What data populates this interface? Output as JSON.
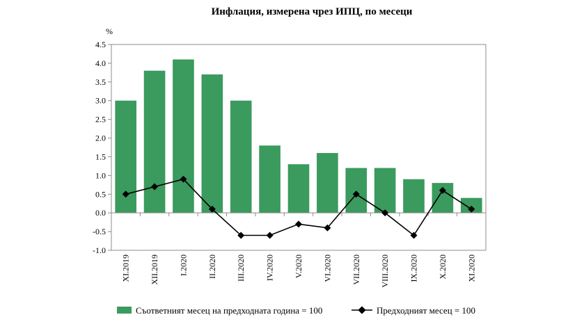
{
  "chart_data": {
    "type": "bar",
    "title": "Инфлация, измерена чрез ИПЦ, по месеци",
    "unit_label": "%",
    "categories": [
      "XI.2019",
      "XII.2019",
      "I.2020",
      "II.2020",
      "III.2020",
      "IV.2020",
      "V.2020",
      "VI.2020",
      "VII.2020",
      "VIII.2020",
      "IX.2020",
      "X.2020",
      "XI.2020"
    ],
    "series": [
      {
        "name": "Съответният месец на предходната година = 100",
        "kind": "bar",
        "color": "#3b9a5e",
        "values": [
          3.0,
          3.8,
          4.1,
          3.7,
          3.0,
          1.8,
          1.3,
          1.6,
          1.2,
          1.2,
          0.9,
          0.8,
          0.4
        ]
      },
      {
        "name": "Предходният месец = 100",
        "kind": "line",
        "color": "#000000",
        "values": [
          0.5,
          0.7,
          0.9,
          0.1,
          -0.6,
          -0.6,
          -0.3,
          -0.4,
          0.5,
          0.0,
          -0.6,
          0.6,
          0.1
        ]
      }
    ],
    "ylim": [
      -1.0,
      4.5
    ],
    "yticks": [
      "-1.0",
      "-0.5",
      "0.0",
      "0.5",
      "1.0",
      "1.5",
      "2.0",
      "2.5",
      "3.0",
      "3.5",
      "4.0",
      "4.5"
    ],
    "grid": false,
    "legend_position": "bottom"
  }
}
